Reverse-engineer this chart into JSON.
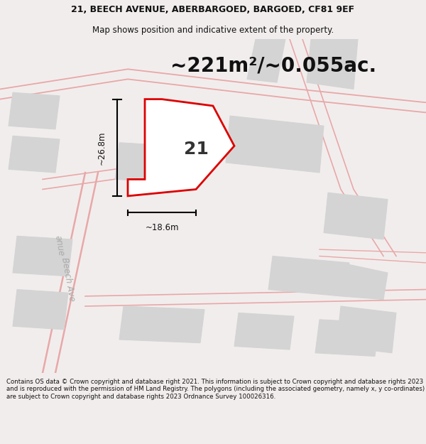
{
  "title_line1": "21, BEECH AVENUE, ABERBARGOED, BARGOED, CF81 9EF",
  "title_line2": "Map shows position and indicative extent of the property.",
  "area_text": "~221m²/~0.055ac.",
  "label_number": "21",
  "dim_horizontal": "~18.6m",
  "dim_vertical": "~26.8m",
  "street_label": "Beech Ave",
  "footer_text": "Contains OS data © Crown copyright and database right 2021. This information is subject to Crown copyright and database rights 2023 and is reproduced with the permission of HM Land Registry. The polygons (including the associated geometry, namely x, y co-ordinates) are subject to Crown copyright and database rights 2023 Ordnance Survey 100026316.",
  "bg_color": "#f2eded",
  "map_bg": "#ffffff",
  "plot_fill": "#ffffff",
  "plot_border": "#dd0000",
  "road_color": "#e8a8a8",
  "building_fill": "#d4d4d4",
  "building_border": "#d4d4d4",
  "dim_line_color": "#111111",
  "text_color": "#111111",
  "title_fontsize": 9.0,
  "subtitle_fontsize": 8.5,
  "area_fontsize": 20,
  "label_fontsize": 18,
  "dim_fontsize": 8.5,
  "footer_fontsize": 6.2,
  "street_color": "#aaaaaa",
  "street_fontsize": 8.5
}
